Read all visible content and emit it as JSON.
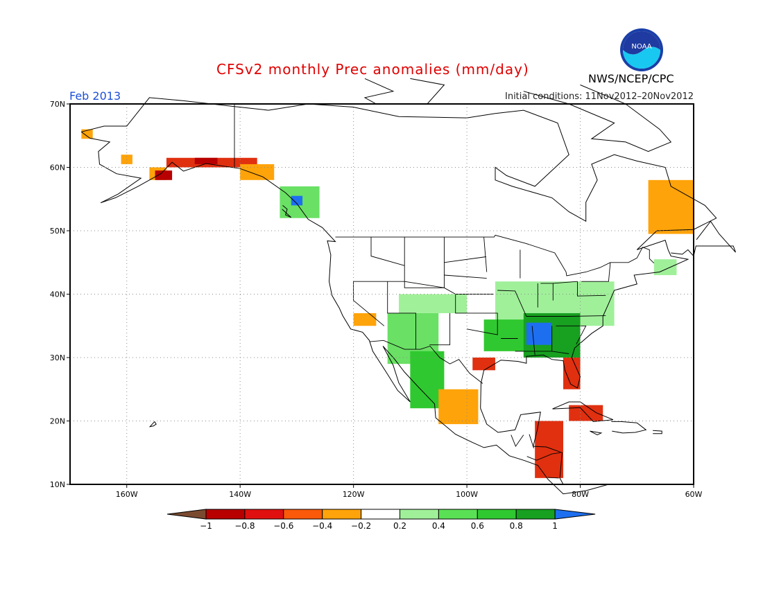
{
  "header": {
    "title": "CFSv2 monthly Prec anomalies (mm/day)",
    "period": "Feb 2013",
    "initial_conditions": "Initial conditions: 11Nov2012–20Nov2012",
    "organization": "NWS/NCEP/CPC",
    "logo_text": "NOAA"
  },
  "map": {
    "lat_labels": [
      "70N",
      "60N",
      "50N",
      "40N",
      "30N",
      "20N",
      "10N"
    ],
    "lon_labels": [
      "160W",
      "140W",
      "120W",
      "100W",
      "80W",
      "60W"
    ],
    "lat_values": [
      70,
      60,
      50,
      40,
      30,
      20,
      10
    ],
    "lon_values": [
      -160,
      -140,
      -120,
      -100,
      -80,
      -60
    ],
    "lon_range": [
      -170,
      -60
    ],
    "lat_range": [
      10,
      70
    ],
    "grid": "dotted",
    "anomaly_regions": [
      {
        "name": "western-alaska-coast",
        "lon": [
          -168,
          -166
        ],
        "lat": [
          64.5,
          66
        ],
        "level": "-0.4"
      },
      {
        "name": "alaska-interior-patch",
        "lon": [
          -161,
          -159
        ],
        "lat": [
          60.5,
          62
        ],
        "level": "-0.4"
      },
      {
        "name": "alaska-peninsula",
        "lon": [
          -156,
          -153
        ],
        "lat": [
          58,
          60
        ],
        "level": "-0.4"
      },
      {
        "name": "alaska-peninsula-core",
        "lon": [
          -155,
          -152
        ],
        "lat": [
          58,
          59.5
        ],
        "level": "-0.8"
      },
      {
        "name": "gulf-of-alaska-coast",
        "lon": [
          -153,
          -137
        ],
        "lat": [
          60,
          61.5
        ],
        "level": "-0.6"
      },
      {
        "name": "gulf-of-alaska-core",
        "lon": [
          -148,
          -144
        ],
        "lat": [
          60.5,
          61.5
        ],
        "level": "-0.8"
      },
      {
        "name": "southeast-alaska",
        "lon": [
          -140,
          -134
        ],
        "lat": [
          58,
          60.5
        ],
        "level": "-0.4"
      },
      {
        "name": "british-columbia-coast",
        "lon": [
          -133,
          -126
        ],
        "lat": [
          52,
          57
        ],
        "level": "0.4"
      },
      {
        "name": "british-columbia-wet-core",
        "lon": [
          -131,
          -129
        ],
        "lat": [
          54,
          55.5
        ],
        "level": "1"
      },
      {
        "name": "southern-california",
        "lon": [
          -120,
          -116
        ],
        "lat": [
          35,
          37
        ],
        "level": "-0.4"
      },
      {
        "name": "southwest-us",
        "lon": [
          -114,
          -105
        ],
        "lat": [
          29,
          37
        ],
        "level": "0.4"
      },
      {
        "name": "central-rockies",
        "lon": [
          -112,
          -100
        ],
        "lat": [
          37,
          40
        ],
        "level": "0.2"
      },
      {
        "name": "sierra-madre-occidental",
        "lon": [
          -110,
          -104
        ],
        "lat": [
          22,
          31
        ],
        "level": "0.6"
      },
      {
        "name": "ohio-valley",
        "lon": [
          -95,
          -74
        ],
        "lat": [
          35,
          42
        ],
        "level": "0.2"
      },
      {
        "name": "southern-plains",
        "lon": [
          -97,
          -88
        ],
        "lat": [
          31,
          36
        ],
        "level": "0.6"
      },
      {
        "name": "tennessee-valley",
        "lon": [
          -90,
          -80
        ],
        "lat": [
          30,
          37
        ],
        "level": "0.8"
      },
      {
        "name": "alabama-core",
        "lon": [
          -89.5,
          -85
        ],
        "lat": [
          32,
          35.5
        ],
        "level": "1"
      },
      {
        "name": "texas-gulf-coast",
        "lon": [
          -99,
          -95
        ],
        "lat": [
          28,
          30
        ],
        "level": "-0.6"
      },
      {
        "name": "florida-peninsula",
        "lon": [
          -83,
          -80
        ],
        "lat": [
          25,
          30
        ],
        "level": "-0.6"
      },
      {
        "name": "mexico-plateau",
        "lon": [
          -105,
          -98
        ],
        "lat": [
          19.5,
          25
        ],
        "level": "-0.4"
      },
      {
        "name": "cuba",
        "lon": [
          -82,
          -76
        ],
        "lat": [
          20,
          22.5
        ],
        "level": "-0.6"
      },
      {
        "name": "central-america",
        "lon": [
          -88,
          -83
        ],
        "lat": [
          11,
          20
        ],
        "level": "-0.6"
      },
      {
        "name": "labrador-coast",
        "lon": [
          -68,
          -60
        ],
        "lat": [
          49.5,
          58
        ],
        "level": "-0.4"
      },
      {
        "name": "nova-scotia",
        "lon": [
          -67,
          -63
        ],
        "lat": [
          43,
          45.5
        ],
        "level": "0.2"
      }
    ]
  },
  "legend": {
    "labels": [
      "−1",
      "−0.8",
      "−0.6",
      "−0.4",
      "−0.2",
      "0.2",
      "0.4",
      "0.6",
      "0.8",
      "1"
    ],
    "boxes": [
      {
        "level": "< -1",
        "color": "#7a4a30"
      },
      {
        "level": "-1 to -0.8",
        "color": "#b80000"
      },
      {
        "level": "-0.8 to -0.6",
        "color": "#e01010"
      },
      {
        "level": "-0.6 to -0.4",
        "color": "#fa5a0a"
      },
      {
        "level": "-0.4 to -0.2",
        "color": "#ffa30a"
      },
      {
        "level": "-0.2 to 0.2",
        "color": "#ffffff"
      },
      {
        "level": "0.2 to 0.4",
        "color": "#a0f09a"
      },
      {
        "level": "0.4 to 0.6",
        "color": "#5ae055"
      },
      {
        "level": "0.6 to 0.8",
        "color": "#30c830"
      },
      {
        "level": "0.8 to 1",
        "color": "#18a020"
      },
      {
        "level": "> 1",
        "color": "#1e6ff0"
      }
    ]
  },
  "colors": {
    "title": "#e00000",
    "period": "#1d4fd8",
    "-1": "#7a4a30",
    "-0.8": "#b80000",
    "-0.6": "#e03010",
    "-0.4": "#ffa30a",
    "0.2": "#a0f09a",
    "0.4": "#6ae065",
    "0.6": "#30c830",
    "0.8": "#18a020",
    "1": "#1e6ff0"
  }
}
